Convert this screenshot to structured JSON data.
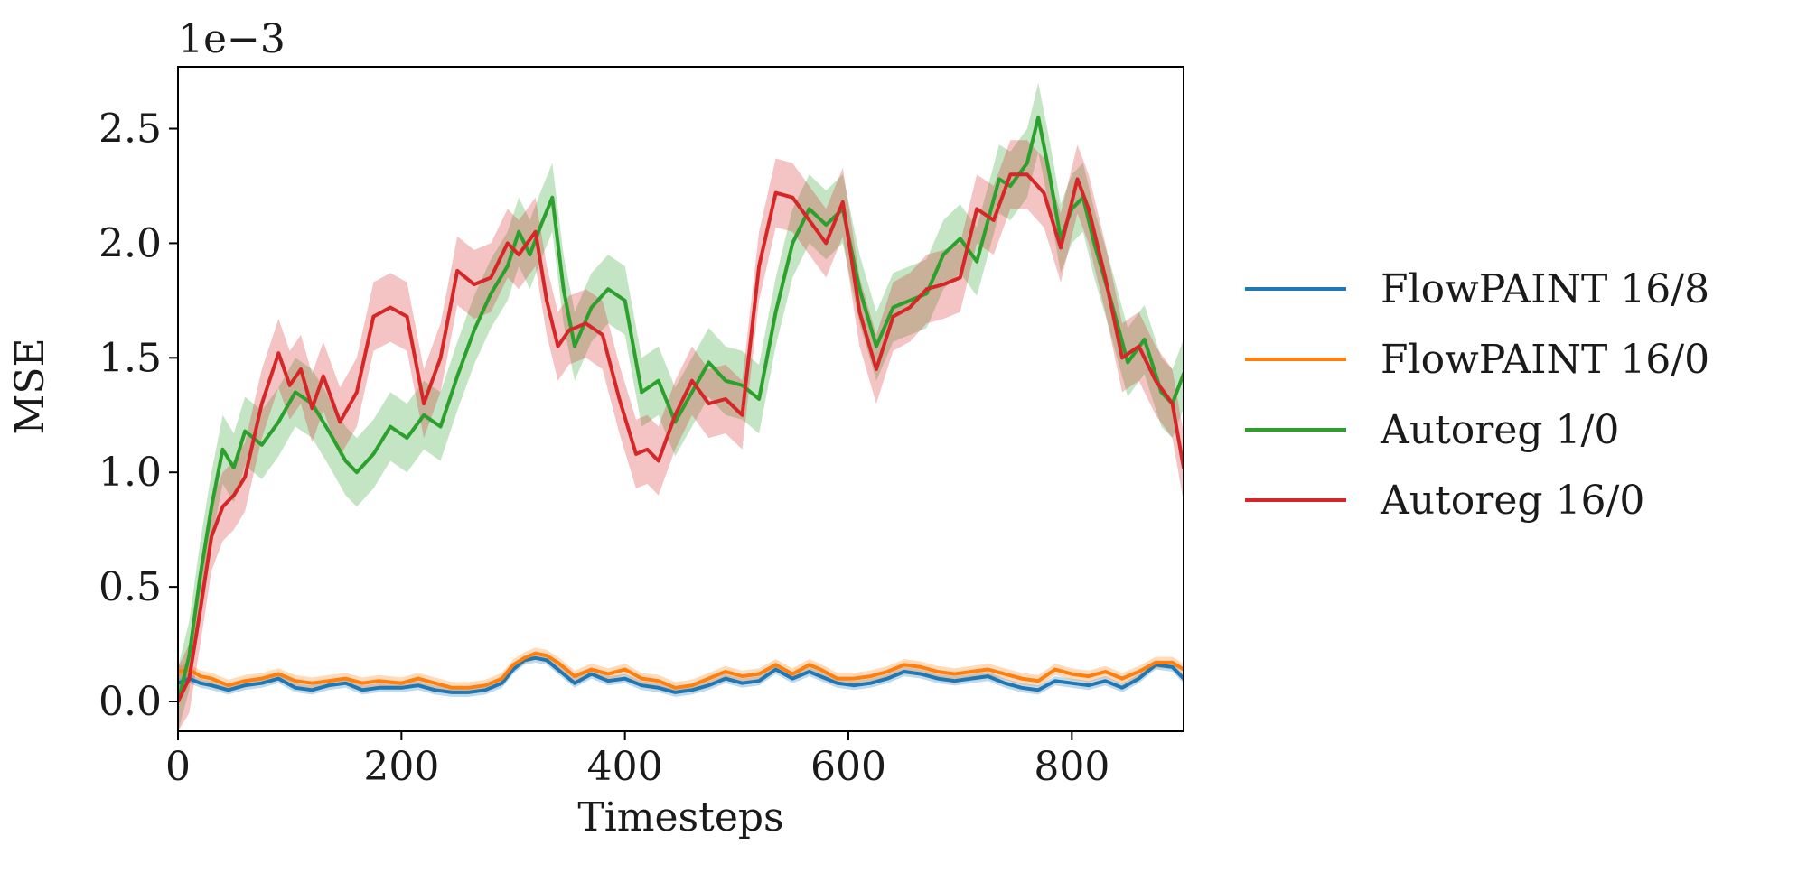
{
  "chart_data": {
    "type": "line",
    "title": "",
    "xlabel": "Timesteps",
    "ylabel": "MSE",
    "y_offset_text": "1e−3",
    "y_scale_factor": 0.001,
    "xlim": [
      0,
      900
    ],
    "ylim": [
      -0.13,
      2.77
    ],
    "x_ticks": [
      0,
      200,
      400,
      600,
      800
    ],
    "x_tick_labels": [
      "0",
      "200",
      "400",
      "600",
      "800"
    ],
    "y_ticks": [
      0.0,
      0.5,
      1.0,
      1.5,
      2.0,
      2.5
    ],
    "y_tick_labels": [
      "0.0",
      "0.5",
      "1.0",
      "1.5",
      "2.0",
      "2.5"
    ],
    "grid": false,
    "legend_position": "right, outside plot",
    "series": [
      {
        "name": "FlowPAINT 16/8",
        "color": "#1f77b4",
        "x": [
          0,
          10,
          20,
          30,
          45,
          60,
          75,
          90,
          105,
          120,
          135,
          150,
          165,
          180,
          200,
          215,
          230,
          245,
          260,
          275,
          290,
          300,
          310,
          320,
          330,
          340,
          355,
          370,
          385,
          400,
          415,
          430,
          445,
          460,
          475,
          490,
          505,
          520,
          535,
          550,
          565,
          575,
          590,
          605,
          620,
          635,
          650,
          665,
          680,
          695,
          710,
          725,
          740,
          755,
          770,
          785,
          800,
          815,
          830,
          845,
          860,
          875,
          890,
          900
        ],
        "y": [
          0.08,
          0.1,
          0.08,
          0.07,
          0.05,
          0.07,
          0.08,
          0.1,
          0.06,
          0.05,
          0.07,
          0.08,
          0.05,
          0.06,
          0.06,
          0.07,
          0.05,
          0.04,
          0.04,
          0.05,
          0.08,
          0.14,
          0.18,
          0.19,
          0.18,
          0.14,
          0.08,
          0.12,
          0.09,
          0.1,
          0.07,
          0.06,
          0.04,
          0.05,
          0.07,
          0.1,
          0.08,
          0.09,
          0.14,
          0.1,
          0.13,
          0.11,
          0.08,
          0.07,
          0.08,
          0.1,
          0.13,
          0.12,
          0.1,
          0.09,
          0.1,
          0.11,
          0.08,
          0.06,
          0.05,
          0.09,
          0.08,
          0.07,
          0.09,
          0.06,
          0.1,
          0.16,
          0.15,
          0.1
        ],
        "band": 0.02
      },
      {
        "name": "FlowPAINT 16/0",
        "color": "#ff7f0e",
        "x": [
          0,
          10,
          20,
          30,
          45,
          60,
          75,
          90,
          105,
          120,
          135,
          150,
          165,
          180,
          200,
          215,
          230,
          245,
          260,
          275,
          290,
          300,
          310,
          320,
          330,
          340,
          355,
          370,
          385,
          400,
          415,
          430,
          445,
          460,
          475,
          490,
          505,
          520,
          535,
          550,
          565,
          575,
          590,
          605,
          620,
          635,
          650,
          665,
          680,
          695,
          710,
          725,
          740,
          755,
          770,
          785,
          800,
          815,
          830,
          845,
          860,
          875,
          890,
          900
        ],
        "y": [
          0.13,
          0.14,
          0.11,
          0.1,
          0.07,
          0.09,
          0.1,
          0.12,
          0.09,
          0.08,
          0.09,
          0.1,
          0.08,
          0.09,
          0.08,
          0.1,
          0.08,
          0.06,
          0.06,
          0.07,
          0.1,
          0.16,
          0.19,
          0.21,
          0.2,
          0.17,
          0.11,
          0.14,
          0.12,
          0.14,
          0.1,
          0.09,
          0.06,
          0.07,
          0.1,
          0.13,
          0.11,
          0.12,
          0.16,
          0.12,
          0.16,
          0.14,
          0.1,
          0.1,
          0.11,
          0.13,
          0.16,
          0.15,
          0.13,
          0.12,
          0.13,
          0.14,
          0.12,
          0.1,
          0.09,
          0.14,
          0.12,
          0.11,
          0.13,
          0.1,
          0.13,
          0.17,
          0.17,
          0.14
        ],
        "band": 0.025
      },
      {
        "name": "Autoreg 1/0",
        "color": "#2ca02c",
        "x": [
          0,
          10,
          20,
          30,
          40,
          50,
          60,
          75,
          90,
          105,
          120,
          135,
          150,
          160,
          175,
          190,
          205,
          220,
          235,
          250,
          265,
          280,
          295,
          305,
          315,
          325,
          335,
          345,
          355,
          370,
          385,
          400,
          415,
          430,
          445,
          460,
          475,
          490,
          505,
          520,
          535,
          550,
          565,
          580,
          595,
          610,
          625,
          640,
          655,
          670,
          685,
          700,
          715,
          725,
          735,
          745,
          760,
          770,
          780,
          790,
          800,
          810,
          820,
          835,
          850,
          865,
          880,
          890,
          900
        ],
        "y": [
          0.0,
          0.2,
          0.55,
          0.85,
          1.1,
          1.02,
          1.18,
          1.12,
          1.22,
          1.35,
          1.3,
          1.18,
          1.05,
          1.0,
          1.08,
          1.2,
          1.15,
          1.25,
          1.2,
          1.42,
          1.62,
          1.78,
          1.9,
          2.05,
          1.95,
          2.08,
          2.2,
          1.8,
          1.55,
          1.72,
          1.8,
          1.75,
          1.35,
          1.4,
          1.22,
          1.35,
          1.48,
          1.4,
          1.38,
          1.32,
          1.7,
          2.0,
          2.15,
          2.08,
          2.15,
          1.8,
          1.55,
          1.72,
          1.75,
          1.78,
          1.95,
          2.02,
          1.92,
          2.1,
          2.28,
          2.25,
          2.35,
          2.55,
          2.3,
          2.02,
          2.15,
          2.2,
          2.0,
          1.75,
          1.48,
          1.58,
          1.35,
          1.3,
          1.43
        ],
        "band": 0.15
      },
      {
        "name": "Autoreg 16/0",
        "color": "#d62728",
        "x": [
          0,
          10,
          20,
          30,
          40,
          50,
          60,
          75,
          90,
          100,
          110,
          120,
          130,
          145,
          160,
          175,
          190,
          205,
          220,
          235,
          250,
          265,
          280,
          295,
          305,
          320,
          330,
          340,
          350,
          365,
          380,
          395,
          410,
          420,
          430,
          445,
          460,
          475,
          490,
          505,
          520,
          535,
          550,
          565,
          580,
          595,
          610,
          625,
          640,
          655,
          670,
          685,
          700,
          715,
          730,
          745,
          760,
          775,
          790,
          805,
          815,
          830,
          845,
          860,
          875,
          890,
          900
        ],
        "y": [
          0.0,
          0.1,
          0.4,
          0.72,
          0.85,
          0.9,
          0.98,
          1.3,
          1.52,
          1.38,
          1.45,
          1.28,
          1.42,
          1.22,
          1.35,
          1.68,
          1.72,
          1.68,
          1.3,
          1.5,
          1.88,
          1.82,
          1.85,
          2.0,
          1.95,
          2.05,
          1.75,
          1.55,
          1.62,
          1.65,
          1.6,
          1.32,
          1.08,
          1.1,
          1.05,
          1.25,
          1.4,
          1.3,
          1.32,
          1.25,
          1.9,
          2.22,
          2.2,
          2.1,
          2.0,
          2.18,
          1.7,
          1.45,
          1.68,
          1.72,
          1.8,
          1.82,
          1.85,
          2.15,
          2.1,
          2.3,
          2.3,
          2.22,
          1.98,
          2.28,
          2.15,
          1.85,
          1.5,
          1.55,
          1.4,
          1.3,
          1.02
        ],
        "band": 0.15
      }
    ]
  }
}
